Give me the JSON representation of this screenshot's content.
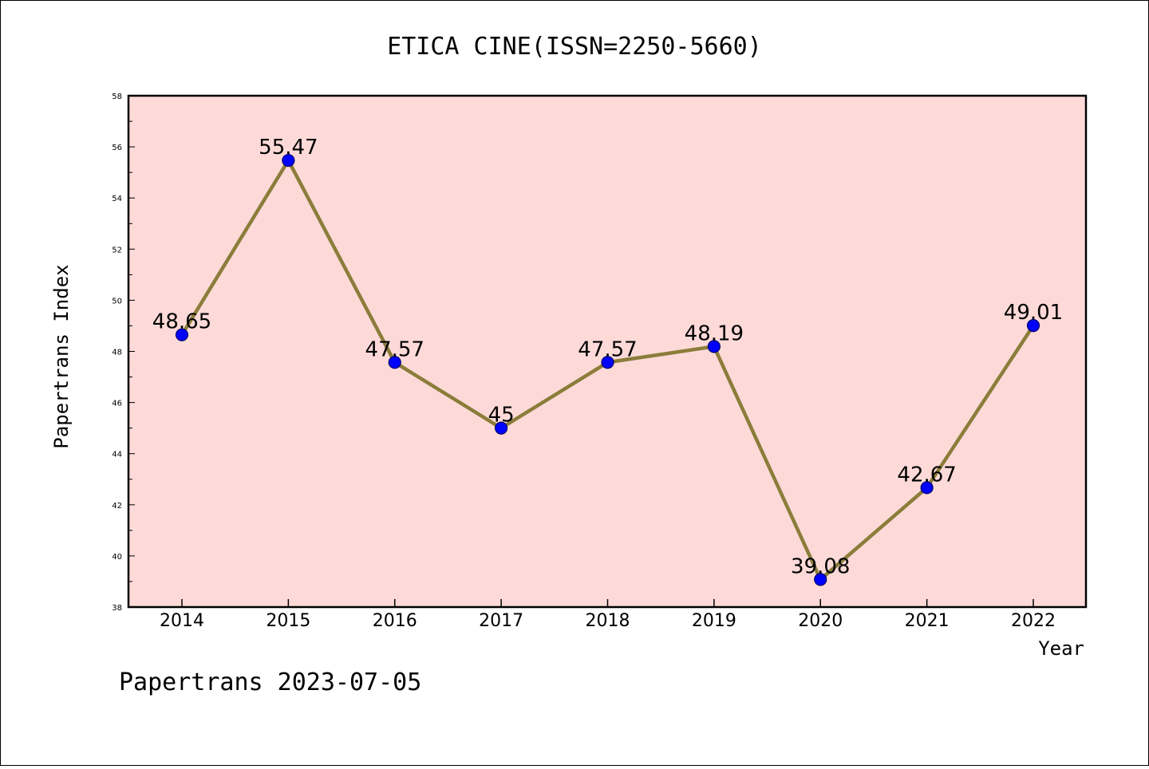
{
  "chart_data": {
    "type": "line",
    "title": "ETICA CINE(ISSN=2250-5660)",
    "xlabel": "Year",
    "ylabel": "Papertrans Index",
    "x": [
      "2014",
      "2015",
      "2016",
      "2017",
      "2018",
      "2019",
      "2020",
      "2021",
      "2022"
    ],
    "series": [
      {
        "values": [
          48.65,
          55.47,
          47.57,
          45,
          47.57,
          48.19,
          39.08,
          42.67,
          49.01
        ],
        "labels": [
          "48.65",
          "55.47",
          "47.57",
          "45",
          "47.57",
          "48.19",
          "39.08",
          "42.67",
          "49.01"
        ]
      }
    ],
    "ylim": [
      38,
      58
    ],
    "y_ticks": [
      "38",
      "40",
      "42",
      "44",
      "46",
      "48",
      "50",
      "52",
      "54",
      "56",
      "58"
    ],
    "grid": false,
    "legend": "none",
    "colors": {
      "plot_background": "#fddad8",
      "line": "#8b7d3a",
      "marker": "#0000ff",
      "marker_edge": "#000066"
    }
  },
  "footer": "Papertrans 2023-07-05"
}
